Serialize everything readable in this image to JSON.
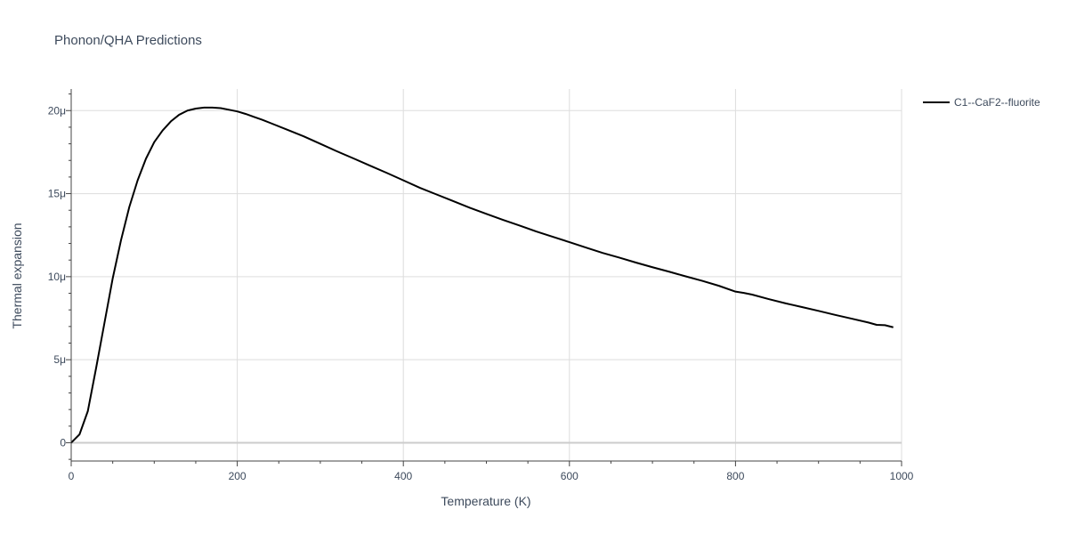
{
  "chart_data": {
    "type": "line",
    "title": "Phonon/QHA Predictions",
    "xlabel": "Temperature (K)",
    "ylabel": "Thermal expansion",
    "xlim": [
      0,
      1000
    ],
    "ylim": [
      -1.1e-06,
      2.13e-05
    ],
    "grid": true,
    "legend_position": "top-right outside",
    "x_ticks": [
      {
        "value": 0,
        "label": "0"
      },
      {
        "value": 200,
        "label": "200"
      },
      {
        "value": 400,
        "label": "400"
      },
      {
        "value": 600,
        "label": "600"
      },
      {
        "value": 800,
        "label": "800"
      },
      {
        "value": 1000,
        "label": "1000"
      }
    ],
    "y_ticks": [
      {
        "value": 0,
        "label": "0"
      },
      {
        "value": 5e-06,
        "label": "5μ"
      },
      {
        "value": 1e-05,
        "label": "10μ"
      },
      {
        "value": 1.5e-05,
        "label": "15μ"
      },
      {
        "value": 2e-05,
        "label": "20μ"
      }
    ],
    "series": [
      {
        "name": "C1--CaF2--fluorite",
        "color": "#000000",
        "x": [
          0,
          10,
          20,
          30,
          40,
          50,
          60,
          70,
          80,
          90,
          100,
          110,
          120,
          130,
          140,
          150,
          160,
          170,
          180,
          190,
          200,
          210,
          220,
          230,
          240,
          260,
          280,
          300,
          320,
          340,
          360,
          380,
          400,
          420,
          440,
          460,
          480,
          500,
          520,
          540,
          560,
          580,
          600,
          620,
          640,
          660,
          680,
          700,
          720,
          740,
          760,
          780,
          800,
          810,
          820,
          840,
          860,
          880,
          900,
          920,
          940,
          960,
          970,
          980,
          990
        ],
        "y": [
          0,
          5e-07,
          1.9e-06,
          4.5e-06,
          7.2e-06,
          9.9e-06,
          1.22e-05,
          1.42e-05,
          1.58e-05,
          1.71e-05,
          1.81e-05,
          1.88e-05,
          1.935e-05,
          1.975e-05,
          2e-05,
          2.012e-05,
          2.018e-05,
          2.018e-05,
          2.015e-05,
          2.005e-05,
          1.995e-05,
          1.98e-05,
          1.962e-05,
          1.945e-05,
          1.925e-05,
          1.885e-05,
          1.845e-05,
          1.8e-05,
          1.755e-05,
          1.712e-05,
          1.668e-05,
          1.625e-05,
          1.58e-05,
          1.535e-05,
          1.495e-05,
          1.455e-05,
          1.415e-05,
          1.378e-05,
          1.342e-05,
          1.308e-05,
          1.272e-05,
          1.24e-05,
          1.208e-05,
          1.175e-05,
          1.143e-05,
          1.115e-05,
          1.085e-05,
          1.057e-05,
          1.03e-05,
          1.002e-05,
          9.75e-06,
          9.45e-06,
          9.1e-06,
          9.02e-06,
          8.92e-06,
          8.65e-06,
          8.4e-06,
          8.17e-06,
          7.94e-06,
          7.7e-06,
          7.47e-06,
          7.24e-06,
          7.1e-06,
          7.08e-06,
          6.95e-06
        ]
      }
    ]
  }
}
